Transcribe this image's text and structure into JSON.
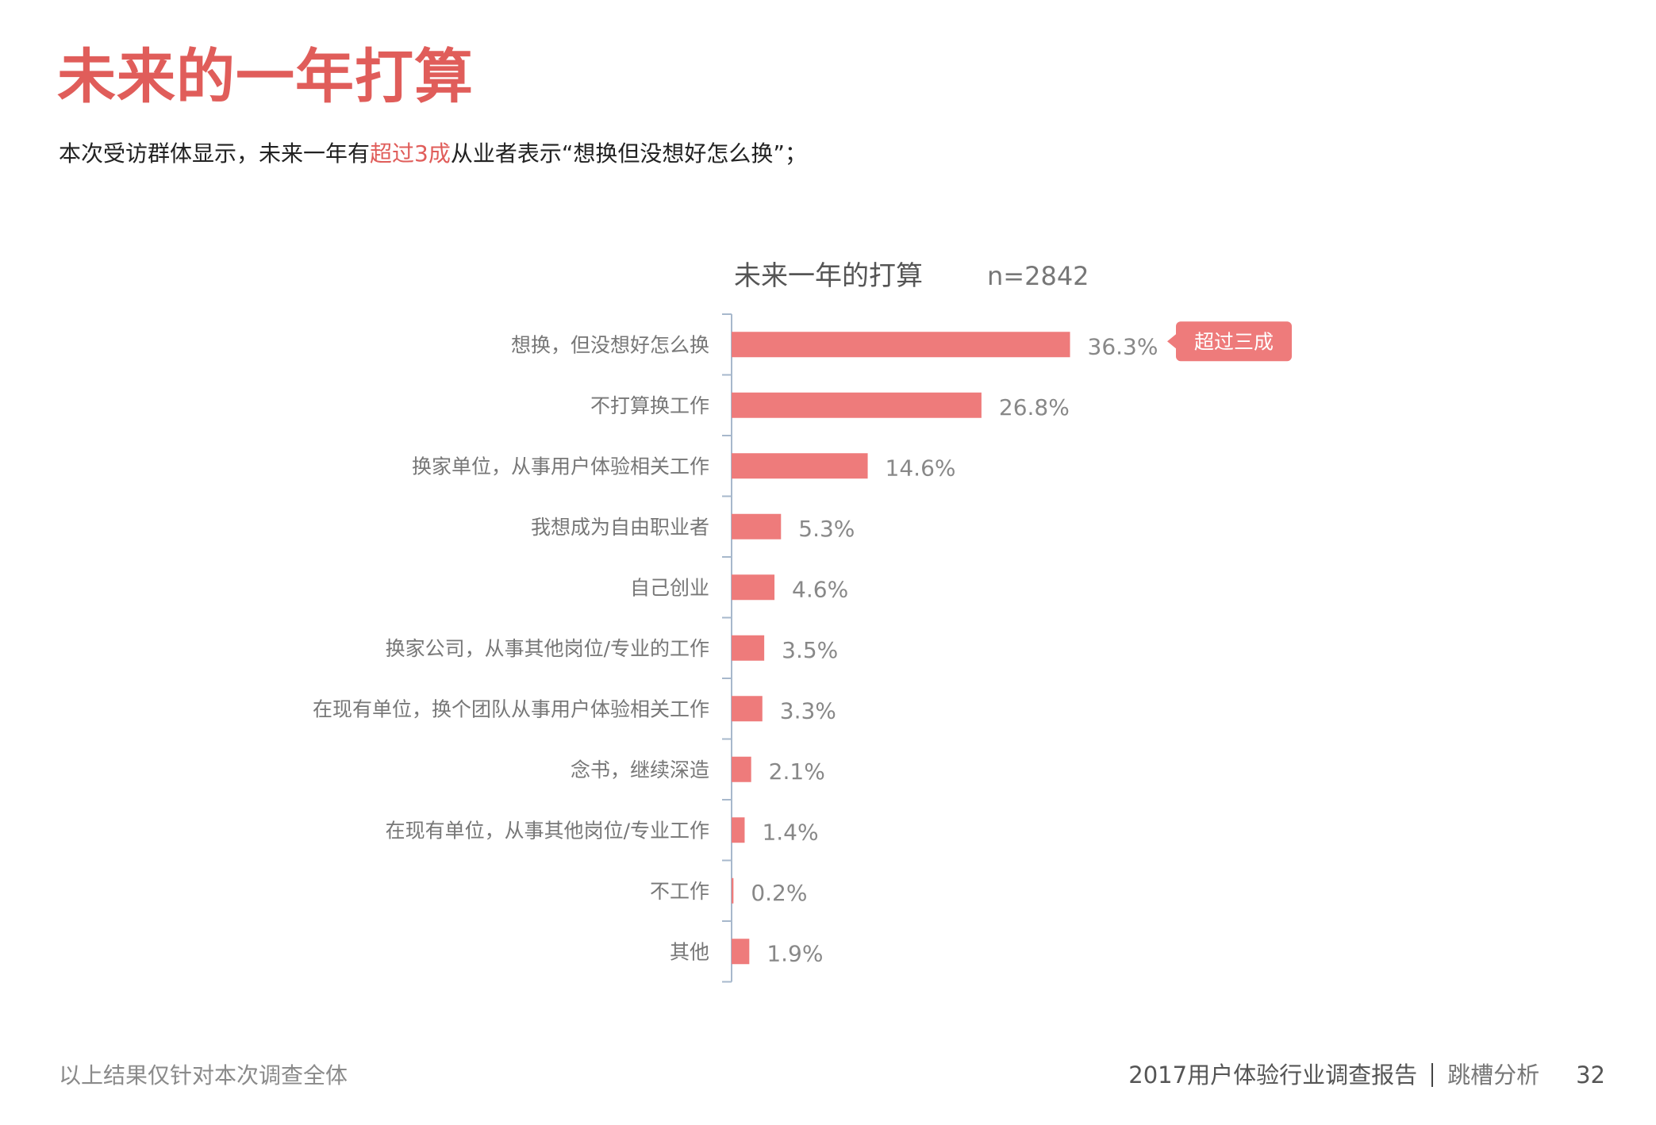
{
  "page": {
    "title": "未来的一年打算",
    "subtitle_before": "本次受访群体显示，未来一年有",
    "subtitle_highlight": "超过3成",
    "subtitle_after": "从业者表示“想换但没想好怎么换”；",
    "footer_note": "以上结果仅针对本次调查全体",
    "report_name": "2017用户体验行业调查报告",
    "section_name": "跳槽分析",
    "page_number": "32"
  },
  "chart_data": {
    "type": "bar",
    "orientation": "horizontal",
    "title": "未来一年的打算",
    "sample_size": "n=2842",
    "categories": [
      "想换，但没想好怎么换",
      "不打算换工作",
      "换家单位，从事用户体验相关工作",
      "我想成为自由职业者",
      "自己创业",
      "换家公司，从事其他岗位/专业的工作",
      "在现有单位，换个团队从事用户体验相关工作",
      "念书，继续深造",
      "在现有单位，从事其他岗位/专业工作",
      "不工作",
      "其他"
    ],
    "values": [
      36.3,
      26.8,
      14.6,
      5.3,
      4.6,
      3.5,
      3.3,
      2.1,
      1.4,
      0.2,
      1.9
    ],
    "value_labels": [
      "36.3%",
      "26.8%",
      "14.6%",
      "5.3%",
      "4.6%",
      "3.5%",
      "3.3%",
      "2.1%",
      "1.4%",
      "0.2%",
      "1.9%"
    ],
    "unit": "%",
    "bar_color": "#ee7b7b",
    "axis_color": "#a7b8cc",
    "callout": {
      "category_index": 0,
      "text": "超过三成",
      "color": "#ee7b7b"
    }
  }
}
